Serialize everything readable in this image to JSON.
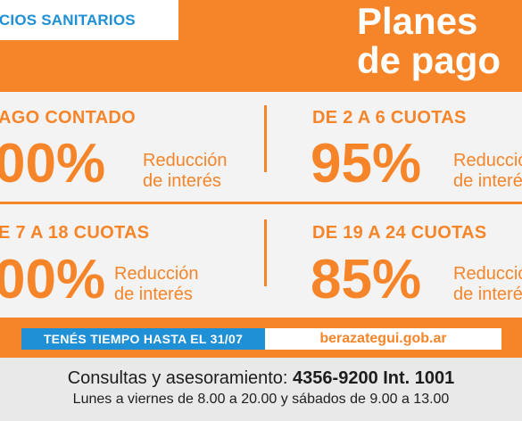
{
  "header": {
    "banner": "ICIOS SANITARIOS",
    "title_line1": "Planes",
    "title_line2": "de pago"
  },
  "plans": [
    {
      "head": "AGO CONTADO",
      "pct": "00%",
      "desc_line1": "Reducción",
      "desc_line2": "de interés"
    },
    {
      "head": "DE 2 A 6 CUOTAS",
      "pct": "95%",
      "desc_line1": "Reducción",
      "desc_line2": "de interés"
    },
    {
      "head": "E 7 A 18 CUOTAS",
      "pct": "00%",
      "desc_line1": "Reducción",
      "desc_line2": "de interés"
    },
    {
      "head": "DE 19 A 24 CUOTAS",
      "pct": "85%",
      "desc_line1": "Reducción",
      "desc_line2": "de interés"
    }
  ],
  "bar": {
    "deadline": "TENÉS TIEMPO HASTA EL 31/07",
    "website": "berazategui.gob.ar"
  },
  "footer": {
    "consult_label": "Consultas y asesoramiento: ",
    "phone": "4356-9200 Int. 1001",
    "hours": "Lunes a viernes de 8.00 a 20.00 y sábados de 9.00 a 13.00"
  },
  "colors": {
    "orange": "#f6852a",
    "blue": "#1f8fd6",
    "panel": "#f3f3f3"
  }
}
